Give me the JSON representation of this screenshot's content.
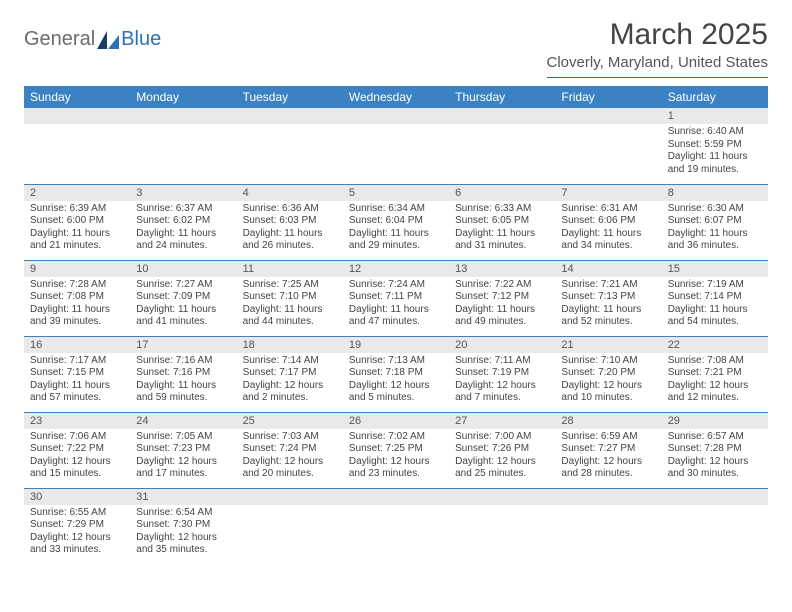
{
  "logo": {
    "general": "General",
    "blue": "Blue"
  },
  "title": "March 2025",
  "location": "Cloverly, Maryland, United States",
  "colors": {
    "header_bg": "#3b82c4",
    "header_text": "#ffffff",
    "daynum_bg": "#e9e9e9",
    "border": "#3b82c4",
    "text": "#444444"
  },
  "day_headers": [
    "Sunday",
    "Monday",
    "Tuesday",
    "Wednesday",
    "Thursday",
    "Friday",
    "Saturday"
  ],
  "weeks": [
    [
      {
        "empty": true
      },
      {
        "empty": true
      },
      {
        "empty": true
      },
      {
        "empty": true
      },
      {
        "empty": true
      },
      {
        "empty": true
      },
      {
        "num": "1",
        "sunrise": "Sunrise: 6:40 AM",
        "sunset": "Sunset: 5:59 PM",
        "daylight": "Daylight: 11 hours and 19 minutes."
      }
    ],
    [
      {
        "num": "2",
        "sunrise": "Sunrise: 6:39 AM",
        "sunset": "Sunset: 6:00 PM",
        "daylight": "Daylight: 11 hours and 21 minutes."
      },
      {
        "num": "3",
        "sunrise": "Sunrise: 6:37 AM",
        "sunset": "Sunset: 6:02 PM",
        "daylight": "Daylight: 11 hours and 24 minutes."
      },
      {
        "num": "4",
        "sunrise": "Sunrise: 6:36 AM",
        "sunset": "Sunset: 6:03 PM",
        "daylight": "Daylight: 11 hours and 26 minutes."
      },
      {
        "num": "5",
        "sunrise": "Sunrise: 6:34 AM",
        "sunset": "Sunset: 6:04 PM",
        "daylight": "Daylight: 11 hours and 29 minutes."
      },
      {
        "num": "6",
        "sunrise": "Sunrise: 6:33 AM",
        "sunset": "Sunset: 6:05 PM",
        "daylight": "Daylight: 11 hours and 31 minutes."
      },
      {
        "num": "7",
        "sunrise": "Sunrise: 6:31 AM",
        "sunset": "Sunset: 6:06 PM",
        "daylight": "Daylight: 11 hours and 34 minutes."
      },
      {
        "num": "8",
        "sunrise": "Sunrise: 6:30 AM",
        "sunset": "Sunset: 6:07 PM",
        "daylight": "Daylight: 11 hours and 36 minutes."
      }
    ],
    [
      {
        "num": "9",
        "sunrise": "Sunrise: 7:28 AM",
        "sunset": "Sunset: 7:08 PM",
        "daylight": "Daylight: 11 hours and 39 minutes."
      },
      {
        "num": "10",
        "sunrise": "Sunrise: 7:27 AM",
        "sunset": "Sunset: 7:09 PM",
        "daylight": "Daylight: 11 hours and 41 minutes."
      },
      {
        "num": "11",
        "sunrise": "Sunrise: 7:25 AM",
        "sunset": "Sunset: 7:10 PM",
        "daylight": "Daylight: 11 hours and 44 minutes."
      },
      {
        "num": "12",
        "sunrise": "Sunrise: 7:24 AM",
        "sunset": "Sunset: 7:11 PM",
        "daylight": "Daylight: 11 hours and 47 minutes."
      },
      {
        "num": "13",
        "sunrise": "Sunrise: 7:22 AM",
        "sunset": "Sunset: 7:12 PM",
        "daylight": "Daylight: 11 hours and 49 minutes."
      },
      {
        "num": "14",
        "sunrise": "Sunrise: 7:21 AM",
        "sunset": "Sunset: 7:13 PM",
        "daylight": "Daylight: 11 hours and 52 minutes."
      },
      {
        "num": "15",
        "sunrise": "Sunrise: 7:19 AM",
        "sunset": "Sunset: 7:14 PM",
        "daylight": "Daylight: 11 hours and 54 minutes."
      }
    ],
    [
      {
        "num": "16",
        "sunrise": "Sunrise: 7:17 AM",
        "sunset": "Sunset: 7:15 PM",
        "daylight": "Daylight: 11 hours and 57 minutes."
      },
      {
        "num": "17",
        "sunrise": "Sunrise: 7:16 AM",
        "sunset": "Sunset: 7:16 PM",
        "daylight": "Daylight: 11 hours and 59 minutes."
      },
      {
        "num": "18",
        "sunrise": "Sunrise: 7:14 AM",
        "sunset": "Sunset: 7:17 PM",
        "daylight": "Daylight: 12 hours and 2 minutes."
      },
      {
        "num": "19",
        "sunrise": "Sunrise: 7:13 AM",
        "sunset": "Sunset: 7:18 PM",
        "daylight": "Daylight: 12 hours and 5 minutes."
      },
      {
        "num": "20",
        "sunrise": "Sunrise: 7:11 AM",
        "sunset": "Sunset: 7:19 PM",
        "daylight": "Daylight: 12 hours and 7 minutes."
      },
      {
        "num": "21",
        "sunrise": "Sunrise: 7:10 AM",
        "sunset": "Sunset: 7:20 PM",
        "daylight": "Daylight: 12 hours and 10 minutes."
      },
      {
        "num": "22",
        "sunrise": "Sunrise: 7:08 AM",
        "sunset": "Sunset: 7:21 PM",
        "daylight": "Daylight: 12 hours and 12 minutes."
      }
    ],
    [
      {
        "num": "23",
        "sunrise": "Sunrise: 7:06 AM",
        "sunset": "Sunset: 7:22 PM",
        "daylight": "Daylight: 12 hours and 15 minutes."
      },
      {
        "num": "24",
        "sunrise": "Sunrise: 7:05 AM",
        "sunset": "Sunset: 7:23 PM",
        "daylight": "Daylight: 12 hours and 17 minutes."
      },
      {
        "num": "25",
        "sunrise": "Sunrise: 7:03 AM",
        "sunset": "Sunset: 7:24 PM",
        "daylight": "Daylight: 12 hours and 20 minutes."
      },
      {
        "num": "26",
        "sunrise": "Sunrise: 7:02 AM",
        "sunset": "Sunset: 7:25 PM",
        "daylight": "Daylight: 12 hours and 23 minutes."
      },
      {
        "num": "27",
        "sunrise": "Sunrise: 7:00 AM",
        "sunset": "Sunset: 7:26 PM",
        "daylight": "Daylight: 12 hours and 25 minutes."
      },
      {
        "num": "28",
        "sunrise": "Sunrise: 6:59 AM",
        "sunset": "Sunset: 7:27 PM",
        "daylight": "Daylight: 12 hours and 28 minutes."
      },
      {
        "num": "29",
        "sunrise": "Sunrise: 6:57 AM",
        "sunset": "Sunset: 7:28 PM",
        "daylight": "Daylight: 12 hours and 30 minutes."
      }
    ],
    [
      {
        "num": "30",
        "sunrise": "Sunrise: 6:55 AM",
        "sunset": "Sunset: 7:29 PM",
        "daylight": "Daylight: 12 hours and 33 minutes."
      },
      {
        "num": "31",
        "sunrise": "Sunrise: 6:54 AM",
        "sunset": "Sunset: 7:30 PM",
        "daylight": "Daylight: 12 hours and 35 minutes."
      },
      {
        "empty": true
      },
      {
        "empty": true
      },
      {
        "empty": true
      },
      {
        "empty": true
      },
      {
        "empty": true
      }
    ]
  ]
}
